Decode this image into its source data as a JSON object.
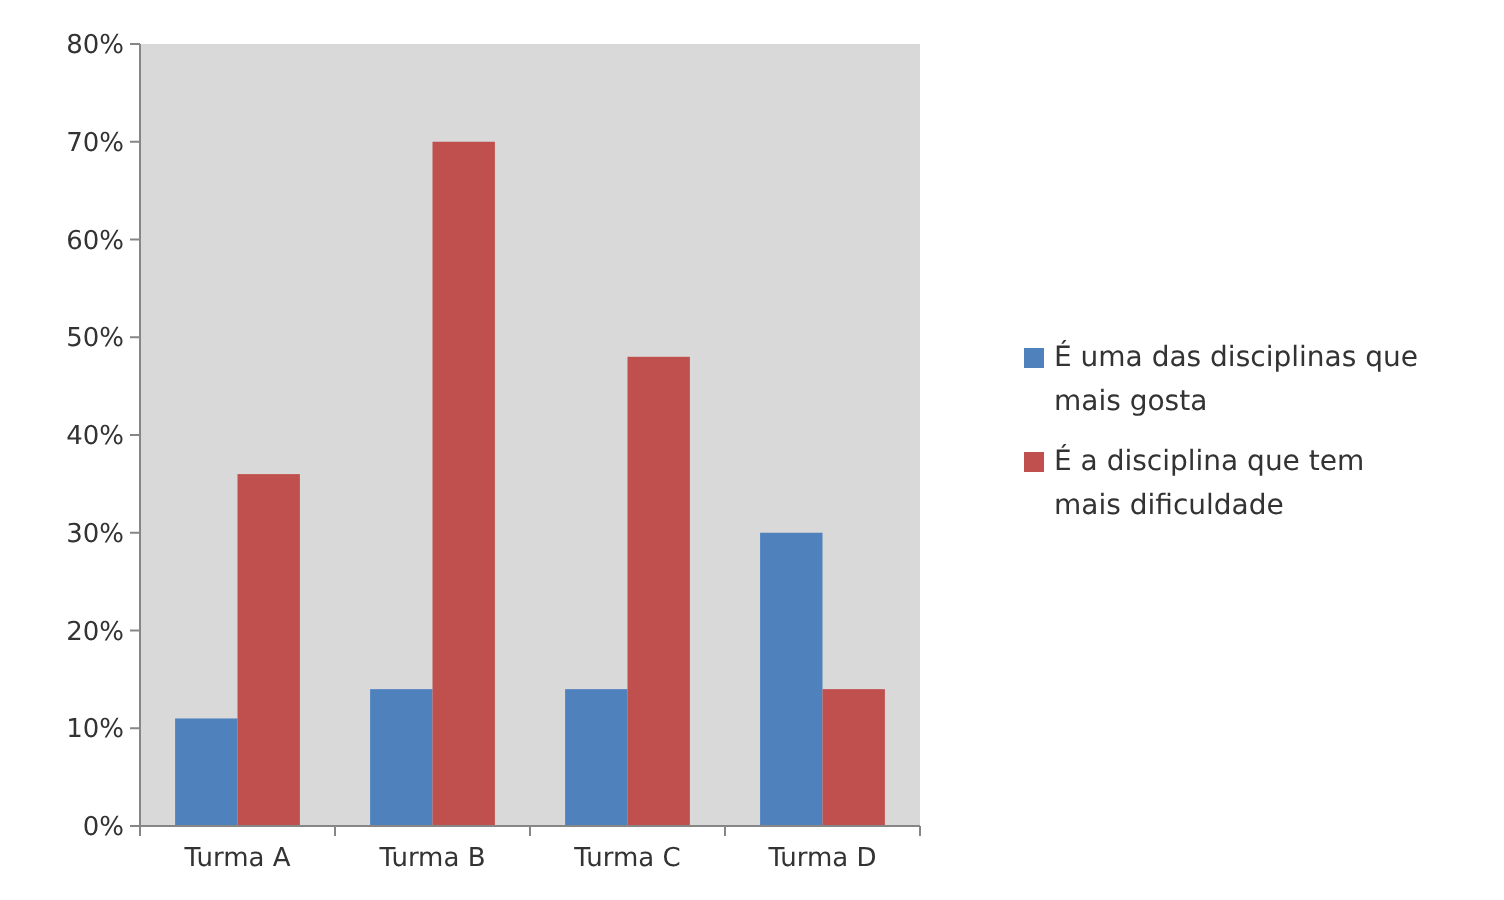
{
  "chart_data": {
    "type": "bar",
    "categories": [
      "Turma A",
      "Turma B",
      "Turma C",
      "Turma D"
    ],
    "series": [
      {
        "name": "É uma das disciplinas que mais gosta",
        "color": "#4f81bd",
        "values": [
          11,
          14,
          14,
          30
        ]
      },
      {
        "name": "É a disciplina que tem mais dificuldade",
        "color": "#c0504d",
        "values": [
          36,
          70,
          48,
          14
        ]
      }
    ],
    "ylim": [
      0,
      80
    ],
    "yticks": [
      {
        "value": 0,
        "label": "0%"
      },
      {
        "value": 10,
        "label": "10%"
      },
      {
        "value": 20,
        "label": "20%"
      },
      {
        "value": 30,
        "label": "30%"
      },
      {
        "value": 40,
        "label": "40%"
      },
      {
        "value": 50,
        "label": "50%"
      },
      {
        "value": 60,
        "label": "60%"
      },
      {
        "value": 70,
        "label": "70%"
      },
      {
        "value": 80,
        "label": "80%"
      }
    ],
    "grid": false,
    "legend": "right"
  }
}
